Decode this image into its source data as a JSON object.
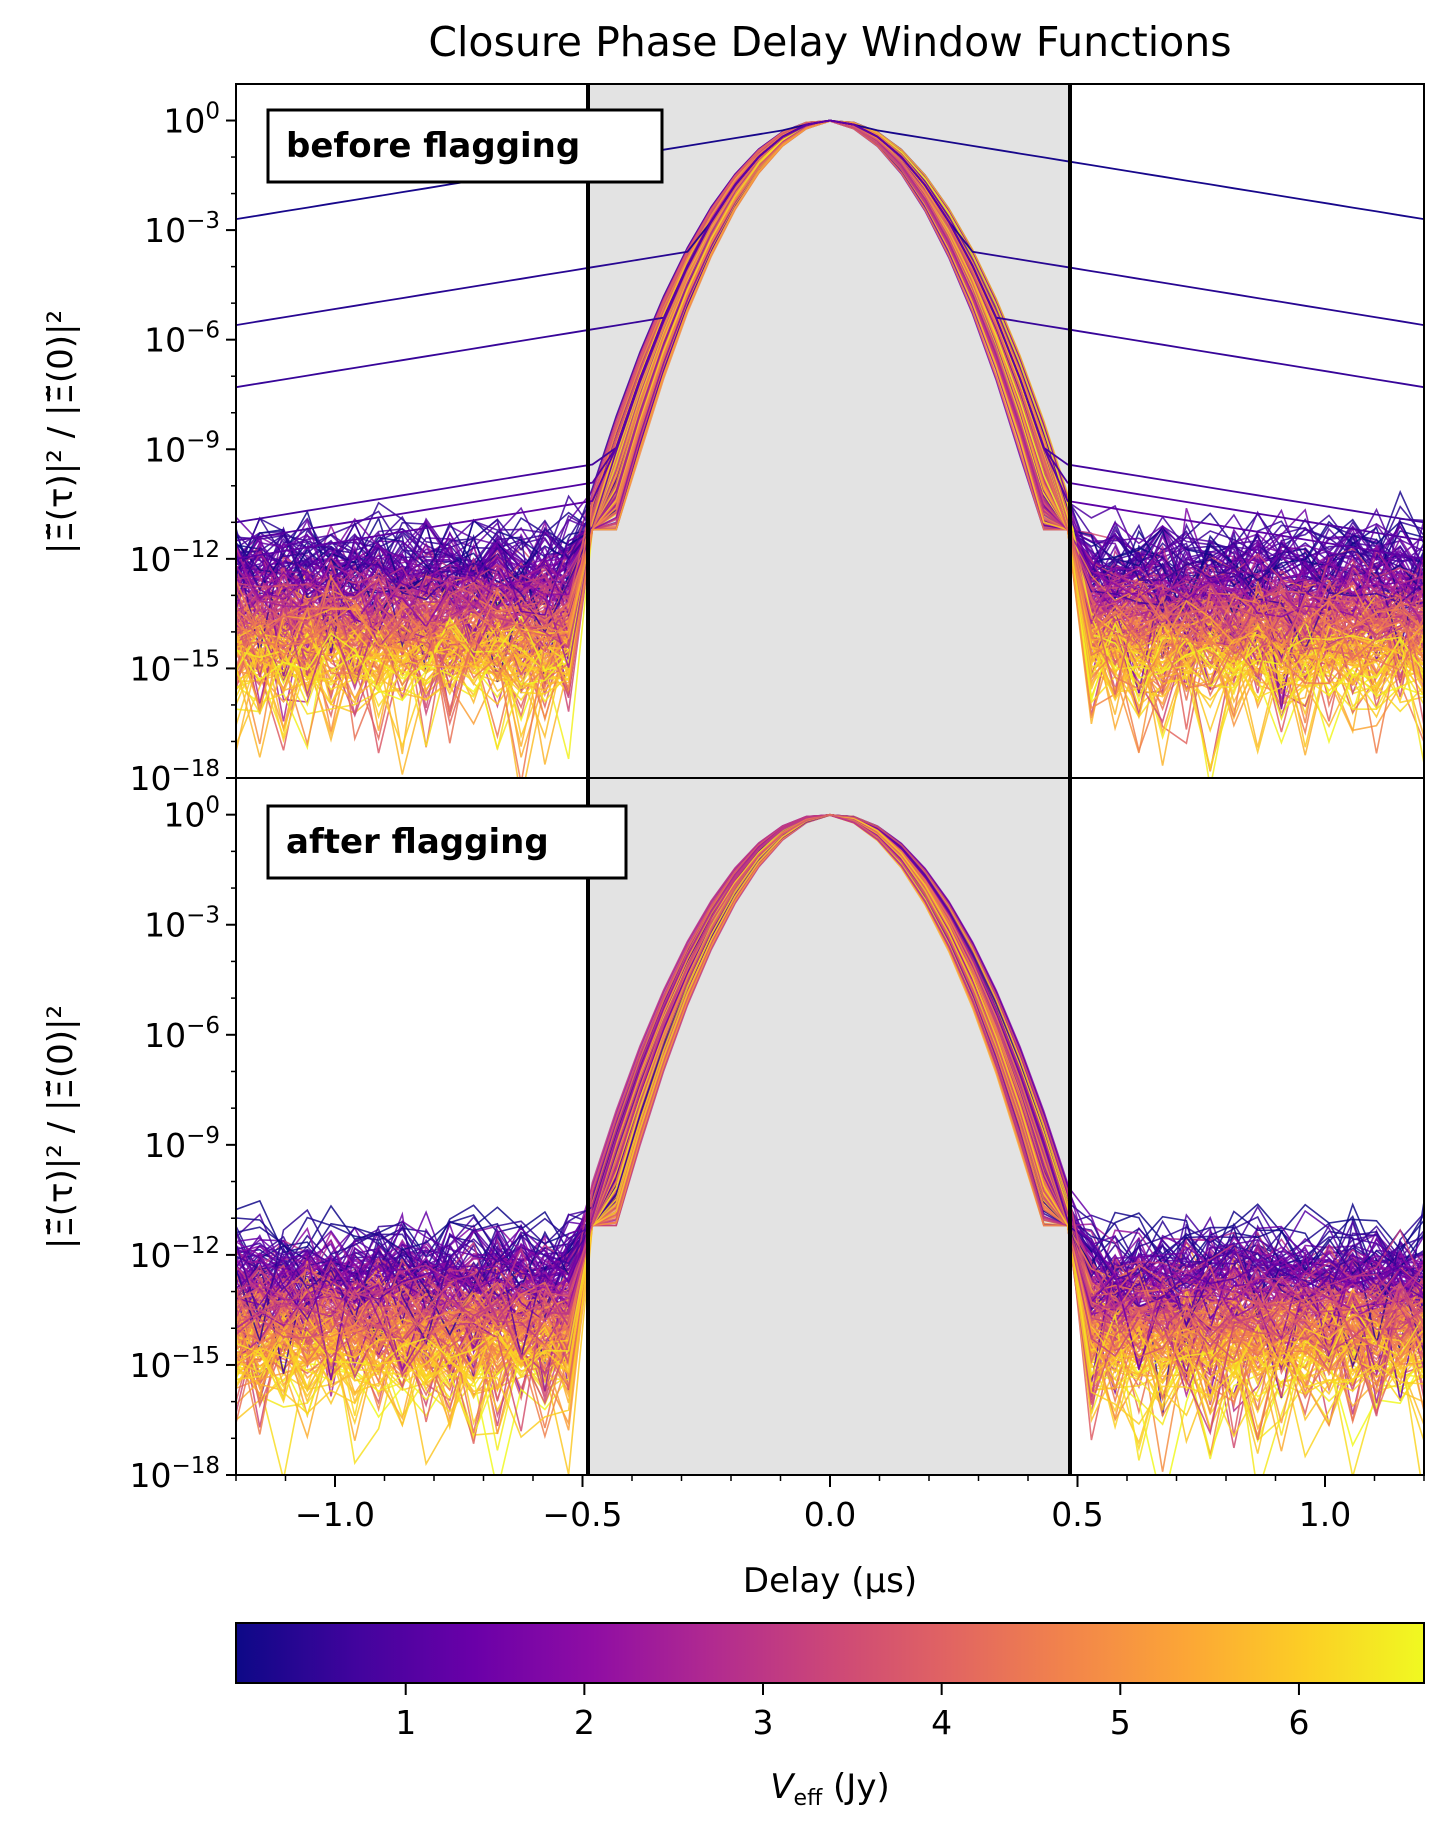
{
  "chart_data": {
    "type": "line",
    "title": "Closure Phase Delay Window Functions",
    "xlabel": "Delay (μs)",
    "ylabel": "|Ξ̃(τ)|² / |Ξ̃(0)|²",
    "xlim": [
      -1.2,
      1.2
    ],
    "ylim_exponent": [
      -18,
      1
    ],
    "yscale": "log",
    "xticks": [
      -1.0,
      -0.5,
      0.0,
      0.5,
      1.0
    ],
    "xtick_labels": [
      "−1.0",
      "−0.5",
      "0.0",
      "0.5",
      "1.0"
    ],
    "ytick_exponents": [
      0,
      -3,
      -6,
      -9,
      -12,
      -15,
      -18
    ],
    "ytick_labels": [
      "10",
      "10",
      "10",
      "10",
      "10",
      "10",
      "10"
    ],
    "ytick_superscripts": [
      "0",
      "−3",
      "−6",
      "−9",
      "−12",
      "−15",
      "−18"
    ],
    "shaded_window": [
      -0.49,
      0.49
    ],
    "panels": [
      {
        "label": "before flagging",
        "n_curves": 200,
        "has_outliers": true,
        "outlier_floor_exponents": [
          -2.7,
          -5.6,
          -7.3,
          -11.0,
          -11.5,
          -12.0
        ]
      },
      {
        "label": "after flagging",
        "n_curves": 200,
        "has_outliers": false
      }
    ],
    "main_lobe_peak": 1.0,
    "noise_floor_exponent_range": [
      -17.5,
      -11.0
    ],
    "colorbar": {
      "label_main": "V",
      "label_sub": "eff",
      "label_unit": " (Jy)",
      "cmap": "plasma",
      "range": [
        0.05,
        6.7
      ],
      "ticks": [
        1,
        2,
        3,
        4,
        5,
        6
      ],
      "tick_labels": [
        "1",
        "2",
        "3",
        "4",
        "5",
        "6"
      ]
    }
  }
}
